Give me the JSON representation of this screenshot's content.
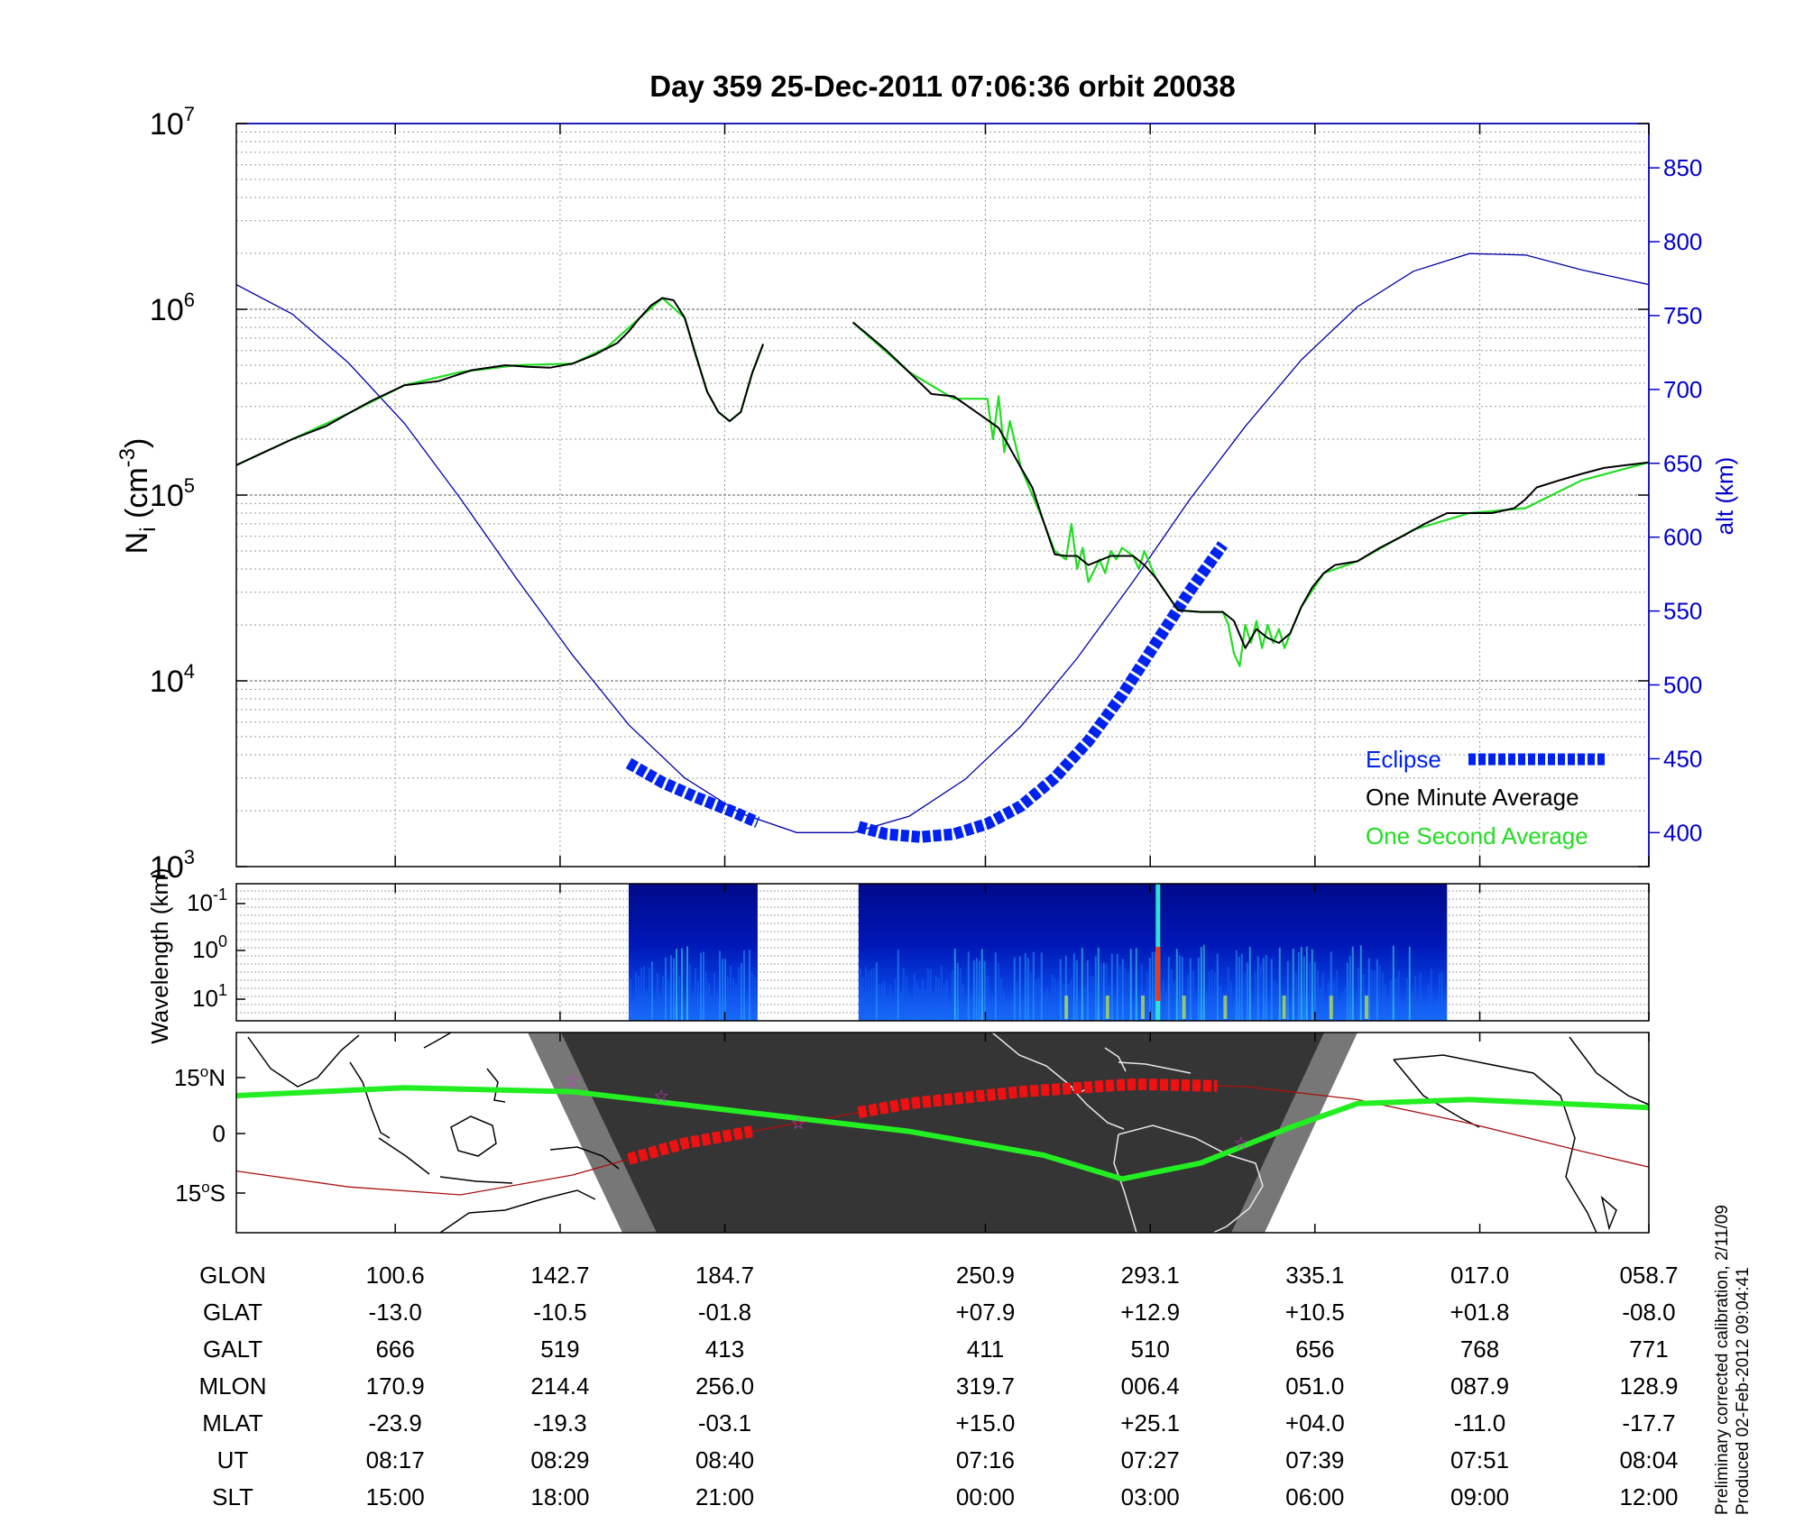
{
  "title": "Day 359  25-Dec-2011 07:06:36   orbit 20038",
  "colors": {
    "density_minute": "#000000",
    "density_second": "#22dd22",
    "altitude": "#0000aa",
    "eclipse": "#0022ee",
    "eclipse_map": "#ee1111",
    "map_track": "#22ee22"
  },
  "chart_data": [
    {
      "type": "line",
      "panel": "ion-density",
      "ylabel": "N",
      "ylabel_sub": "i",
      "ylabel_unit_open": " (cm",
      "ylabel_unit_exp": "-3",
      "ylabel_unit_close": ")",
      "yscale": "log",
      "ylim": [
        1000,
        10000000
      ],
      "yticks": [
        {
          "base": "10",
          "exp": "3",
          "value": 1000
        },
        {
          "base": "10",
          "exp": "4",
          "value": 10000
        },
        {
          "base": "10",
          "exp": "5",
          "value": 100000
        },
        {
          "base": "10",
          "exp": "6",
          "value": 1000000
        },
        {
          "base": "10",
          "exp": "7",
          "value": 10000000
        }
      ],
      "y2label": "alt (km)",
      "y2lim": [
        377,
        880
      ],
      "y2ticks": [
        "400",
        "450",
        "500",
        "550",
        "600",
        "650",
        "700",
        "750",
        "800",
        "850"
      ],
      "grid": true,
      "legend_position": "bottom-right",
      "legend": {
        "eclipse": "Eclipse",
        "minute": "One Minute Average",
        "second": "One Second Average"
      },
      "series": [
        {
          "name": "One Minute Average",
          "segments": [
            {
              "x": [
                0,
                0.02,
                0.05,
                0.08,
                0.1,
                0.12,
                0.15,
                0.18,
                0.21,
                0.24,
                0.26,
                0.28,
                0.3,
                0.32,
                0.34,
                0.35,
                0.36,
                0.37,
                0.38,
                0.39,
                0.4,
                0.41,
                0.42,
                0.43,
                0.44,
                0.45,
                0.46,
                0.47
              ],
              "y": [
                145000,
                165000,
                200000,
                235000,
                275000,
                320000,
                390000,
                410000,
                470000,
                500000,
                490000,
                485000,
                510000,
                570000,
                660000,
                760000,
                900000,
                1050000,
                1150000,
                1120000,
                900000,
                560000,
                360000,
                280000,
                250000,
                280000,
                450000,
                650000
              ]
            },
            {
              "x": [
                0.55,
                0.56,
                0.58,
                0.6,
                0.62,
                0.64,
                0.66,
                0.68,
                0.7,
                0.71,
                0.72,
                0.73,
                0.74,
                0.75,
                0.76,
                0.78,
                0.8,
                0.81,
                0.82,
                0.84,
                0.86,
                0.88,
                0.89,
                0.9,
                0.91,
                0.92,
                0.93,
                0.94,
                0.95,
                0.96,
                0.97,
                0.98,
                0.99,
                1.0,
                1.02,
                1.04,
                1.06,
                1.08,
                1.1,
                1.12,
                1.14,
                1.15,
                1.16,
                1.18,
                1.2,
                1.22,
                1.24,
                1.26
              ],
              "y": [
                850000,
                760000,
                600000,
                460000,
                350000,
                340000,
                280000,
                230000,
                140000,
                110000,
                72000,
                48000,
                47000,
                47000,
                42000,
                47000,
                47000,
                42000,
                36000,
                24000,
                23500,
                23500,
                21000,
                15000,
                19000,
                17000,
                16000,
                18000,
                25000,
                32000,
                38000,
                42000,
                43000,
                44000,
                52000,
                60000,
                70000,
                80000,
                80000,
                80000,
                85000,
                95000,
                110000,
                120000,
                130000,
                140000,
                145000,
                150000
              ]
            }
          ]
        },
        {
          "name": "One Second Average",
          "segments": [
            {
              "x": [
                0,
                0.05,
                0.1,
                0.15,
                0.2,
                0.25,
                0.3,
                0.33,
                0.36,
                0.38,
                0.4,
                0.42,
                0.43,
                0.44,
                0.45,
                0.46,
                0.47
              ],
              "y": [
                145000,
                200000,
                275000,
                390000,
                460000,
                500000,
                510000,
                620000,
                900000,
                1150000,
                900000,
                360000,
                280000,
                250000,
                280000,
                450000,
                650000
              ]
            },
            {
              "x": [
                0.55,
                0.6,
                0.64,
                0.67,
                0.675,
                0.68,
                0.685,
                0.69,
                0.7,
                0.72,
                0.73,
                0.74,
                0.745,
                0.75,
                0.755,
                0.76,
                0.77,
                0.775,
                0.78,
                0.785,
                0.79,
                0.8,
                0.805,
                0.81,
                0.82,
                0.84,
                0.86,
                0.88,
                0.885,
                0.89,
                0.895,
                0.9,
                0.905,
                0.91,
                0.915,
                0.92,
                0.925,
                0.93,
                0.935,
                0.94,
                0.95,
                0.97,
                1.0,
                1.05,
                1.1,
                1.15,
                1.2,
                1.26
              ],
              "y": [
                850000,
                460000,
                330000,
                330000,
                200000,
                340000,
                170000,
                250000,
                140000,
                72000,
                50000,
                45000,
                70000,
                40000,
                52000,
                34000,
                45000,
                38000,
                50000,
                45000,
                52000,
                47000,
                40000,
                50000,
                36000,
                24000,
                23500,
                23500,
                20000,
                14000,
                12000,
                20000,
                16000,
                21000,
                15000,
                20000,
                16000,
                19000,
                15000,
                18000,
                25000,
                38000,
                44000,
                65000,
                80000,
                85000,
                120000,
                150000
              ]
            }
          ]
        },
        {
          "name": "alt (km)",
          "axis": "right",
          "x": [
            0,
            0.05,
            0.1,
            0.15,
            0.2,
            0.25,
            0.3,
            0.35,
            0.4,
            0.45,
            0.5,
            0.55,
            0.6,
            0.65,
            0.7,
            0.75,
            0.8,
            0.85,
            0.9,
            0.95,
            1.0,
            1.05,
            1.1,
            1.15,
            1.2,
            1.26
          ],
          "y": [
            771,
            751,
            718,
            677,
            626,
            572,
            520,
            473,
            437,
            413,
            400,
            400,
            411,
            436,
            472,
            518,
            570,
            625,
            675,
            720,
            756,
            780,
            792,
            791,
            781,
            771
          ]
        },
        {
          "name": "Eclipse",
          "axis": "right",
          "segments": [
            {
              "x": [
                0.35,
                0.38,
                0.41,
                0.44,
                0.465
              ],
              "y": [
                447,
                434,
                424,
                415,
                407
              ]
            },
            {
              "x": [
                0.555,
                0.58,
                0.61,
                0.64,
                0.67,
                0.7,
                0.73,
                0.76,
                0.79,
                0.82,
                0.85,
                0.88
              ],
              "y": [
                404,
                399,
                397,
                399,
                406,
                418,
                437,
                462,
                493,
                528,
                563,
                595
              ]
            }
          ]
        }
      ]
    },
    {
      "type": "heatmap",
      "panel": "spectrogram",
      "ylabel": "Wavelength (km)",
      "yticks": [
        {
          "base": "10",
          "exp": "-1"
        },
        {
          "base": "10",
          "exp": "0"
        },
        {
          "base": "10",
          "exp": "1"
        }
      ],
      "data_segments": [
        [
          0.35,
          0.465
        ],
        [
          0.555,
          1.08
        ]
      ]
    },
    {
      "type": "line",
      "panel": "ground-track-map",
      "yticks": [
        {
          "value": "15",
          "hemi": "N"
        },
        {
          "value": "0",
          "hemi": ""
        },
        {
          "value": "15",
          "hemi": "S"
        }
      ],
      "series": [
        {
          "name": "magnetic-equator",
          "x": [
            0,
            0.15,
            0.3,
            0.45,
            0.6,
            0.72,
            0.79,
            0.86,
            0.94,
            1.0,
            1.1,
            1.26
          ],
          "y": [
            10,
            12,
            11,
            6,
            1,
            -5,
            -11,
            -7,
            2,
            8,
            9,
            7
          ]
        },
        {
          "name": "orbit-track",
          "x": [
            0,
            0.1,
            0.2,
            0.3,
            0.35,
            0.4,
            0.5,
            0.6,
            0.7,
            0.8,
            0.9,
            1.0,
            1.1,
            1.2,
            1.26
          ],
          "y": [
            -9,
            -13,
            -15,
            -10,
            -6,
            -2,
            3,
            8,
            11,
            12.9,
            12.3,
            9,
            3,
            -4,
            -8
          ]
        }
      ],
      "eclipse_segments": [
        [
          0.35,
          0.465
        ],
        [
          0.555,
          0.88
        ]
      ]
    }
  ],
  "table": {
    "rows": [
      {
        "label": "GLON",
        "values": [
          "100.6",
          "142.7",
          "184.7",
          "250.9",
          "293.1",
          "335.1",
          "017.0",
          "058.7"
        ]
      },
      {
        "label": "GLAT",
        "values": [
          "-13.0",
          "-10.5",
          "-01.8",
          "+07.9",
          "+12.9",
          "+10.5",
          "+01.8",
          "-08.0"
        ]
      },
      {
        "label": "GALT",
        "values": [
          "666",
          "519",
          "413",
          "411",
          "510",
          "656",
          "768",
          "771"
        ]
      },
      {
        "label": "MLON",
        "values": [
          "170.9",
          "214.4",
          "256.0",
          "319.7",
          "006.4",
          "051.0",
          "087.9",
          "128.9"
        ]
      },
      {
        "label": "MLAT",
        "values": [
          "-23.9",
          "-19.3",
          "-03.1",
          "+15.0",
          "+25.1",
          "+04.0",
          "-11.0",
          "-17.7"
        ]
      },
      {
        "label": "UT",
        "values": [
          "08:17",
          "08:29",
          "08:40",
          "07:16",
          "07:27",
          "07:39",
          "07:51",
          "08:04"
        ]
      },
      {
        "label": "SLT",
        "values": [
          "15:00",
          "18:00",
          "21:00",
          "00:00",
          "03:00",
          "06:00",
          "09:00",
          "12:00"
        ]
      }
    ]
  },
  "footnote": {
    "line1": "Preliminary corrected calibration, 2/11/09",
    "line2": "Produced 02-Feb-2012 09:04:41"
  }
}
